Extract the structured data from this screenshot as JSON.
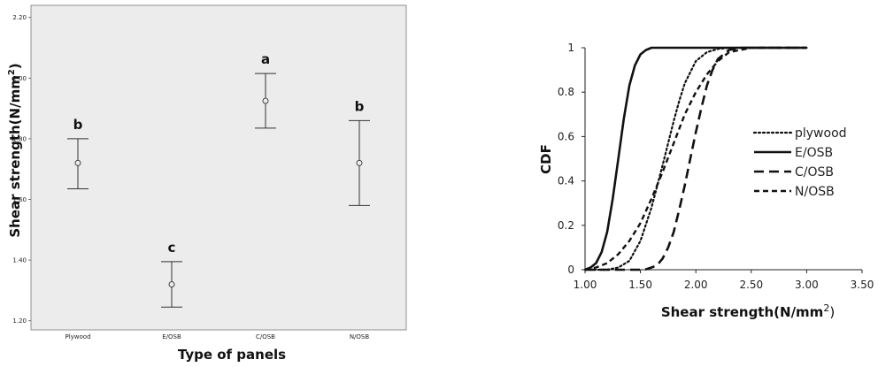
{
  "chart_data": [
    {
      "type": "errorbar",
      "xlabel": "Type of panels",
      "ylabel": "Shear strength(N/mm",
      "ylabel_sup": "2",
      "ylabel_close": ")",
      "ylim": [
        1.17,
        2.24
      ],
      "yticks": [
        "1.20",
        "1.40",
        "1.60",
        "1.80",
        "2.00",
        "2.20"
      ],
      "categories": [
        "Plywood",
        "E/OSB",
        "C/OSB",
        "N/OSB"
      ],
      "means": [
        1.72,
        1.32,
        1.925,
        1.72
      ],
      "lower": [
        1.635,
        1.245,
        1.835,
        1.58
      ],
      "upper": [
        1.8,
        1.395,
        2.015,
        1.86
      ],
      "group_letters": [
        "b",
        "c",
        "a",
        "b"
      ],
      "grid": false,
      "background": "#ececec"
    },
    {
      "type": "line",
      "xlabel": "Shear strength(N/mm",
      "xlabel_sup": "2",
      "xlabel_close": ")",
      "ylabel": "CDF",
      "xlim": [
        1.0,
        3.5
      ],
      "ylim": [
        0,
        1
      ],
      "xticks": [
        "1.00",
        "1.50",
        "2.00",
        "2.50",
        "3.00",
        "3.50"
      ],
      "yticks": [
        "0",
        "0.2",
        "0.4",
        "0.6",
        "0.8",
        "1"
      ],
      "legend_position": "right",
      "grid": false,
      "series": [
        {
          "name": "plywood",
          "style": "dotted",
          "x": [
            1.0,
            1.1,
            1.2,
            1.3,
            1.4,
            1.5,
            1.6,
            1.7,
            1.75,
            1.8,
            1.85,
            1.9,
            2.0,
            2.1,
            2.2,
            2.3,
            2.5,
            3.0
          ],
          "y": [
            0.0,
            0.0,
            0.0,
            0.01,
            0.04,
            0.13,
            0.28,
            0.47,
            0.57,
            0.67,
            0.76,
            0.84,
            0.94,
            0.98,
            0.995,
            1.0,
            1.0,
            1.0
          ]
        },
        {
          "name": "E/OSB",
          "style": "solid",
          "x": [
            1.0,
            1.05,
            1.1,
            1.15,
            1.2,
            1.25,
            1.3,
            1.35,
            1.4,
            1.45,
            1.5,
            1.55,
            1.6,
            1.65,
            1.7,
            3.0
          ],
          "y": [
            0.0,
            0.01,
            0.03,
            0.08,
            0.17,
            0.32,
            0.5,
            0.68,
            0.83,
            0.92,
            0.97,
            0.99,
            1.0,
            1.0,
            1.0,
            1.0
          ]
        },
        {
          "name": "C/OSB",
          "style": "long-dash",
          "x": [
            1.0,
            1.5,
            1.55,
            1.6,
            1.65,
            1.7,
            1.75,
            1.8,
            1.85,
            1.9,
            1.95,
            2.0,
            2.05,
            2.1,
            2.15,
            2.2,
            2.3,
            2.4,
            3.0
          ],
          "y": [
            0.0,
            0.0,
            0.002,
            0.01,
            0.02,
            0.05,
            0.1,
            0.17,
            0.27,
            0.38,
            0.5,
            0.62,
            0.73,
            0.83,
            0.9,
            0.95,
            0.99,
            1.0,
            1.0
          ]
        },
        {
          "name": "N/OSB",
          "style": "short-dash",
          "x": [
            1.0,
            1.1,
            1.2,
            1.3,
            1.4,
            1.5,
            1.6,
            1.7,
            1.8,
            1.9,
            2.0,
            2.1,
            2.2,
            2.3,
            2.4,
            2.5,
            3.0
          ],
          "y": [
            0.0,
            0.01,
            0.03,
            0.07,
            0.13,
            0.21,
            0.32,
            0.44,
            0.57,
            0.7,
            0.8,
            0.88,
            0.94,
            0.98,
            0.99,
            1.0,
            1.0
          ]
        }
      ]
    }
  ]
}
